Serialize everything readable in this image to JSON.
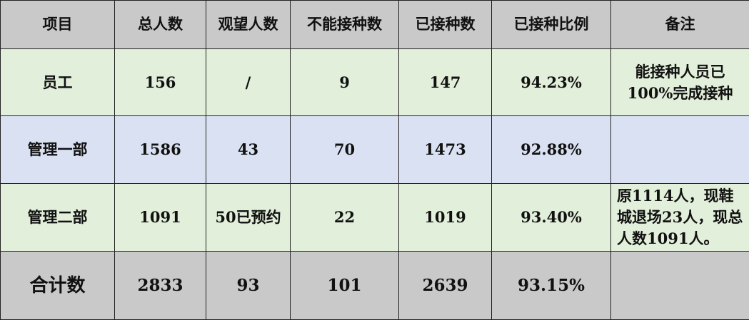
{
  "headers": [
    "项目",
    "总人数",
    "观望人数",
    "不能接种数",
    "已接种数",
    "已接种比例",
    "备注"
  ],
  "rows": [
    [
      "员工",
      "156",
      "/",
      "9",
      "147",
      "94.23%",
      "能接种人员已100%完成接种"
    ],
    [
      "管理一部",
      "1586",
      "43",
      "70",
      "1473",
      "92.88%",
      ""
    ],
    [
      "管理二部",
      "1091",
      "50已预约",
      "22",
      "1019",
      "93.40%",
      "原1114人，现鞋城退场23人，现总人数1091人。"
    ],
    [
      "合计数",
      "2833",
      "93",
      "101",
      "2639",
      "93.15%",
      ""
    ]
  ],
  "colors": {
    "header": "#c9c9c9",
    "green_row": "#e2efda",
    "blue_row": "#d9e1f2",
    "total_row": "#c9c9c9"
  }
}
